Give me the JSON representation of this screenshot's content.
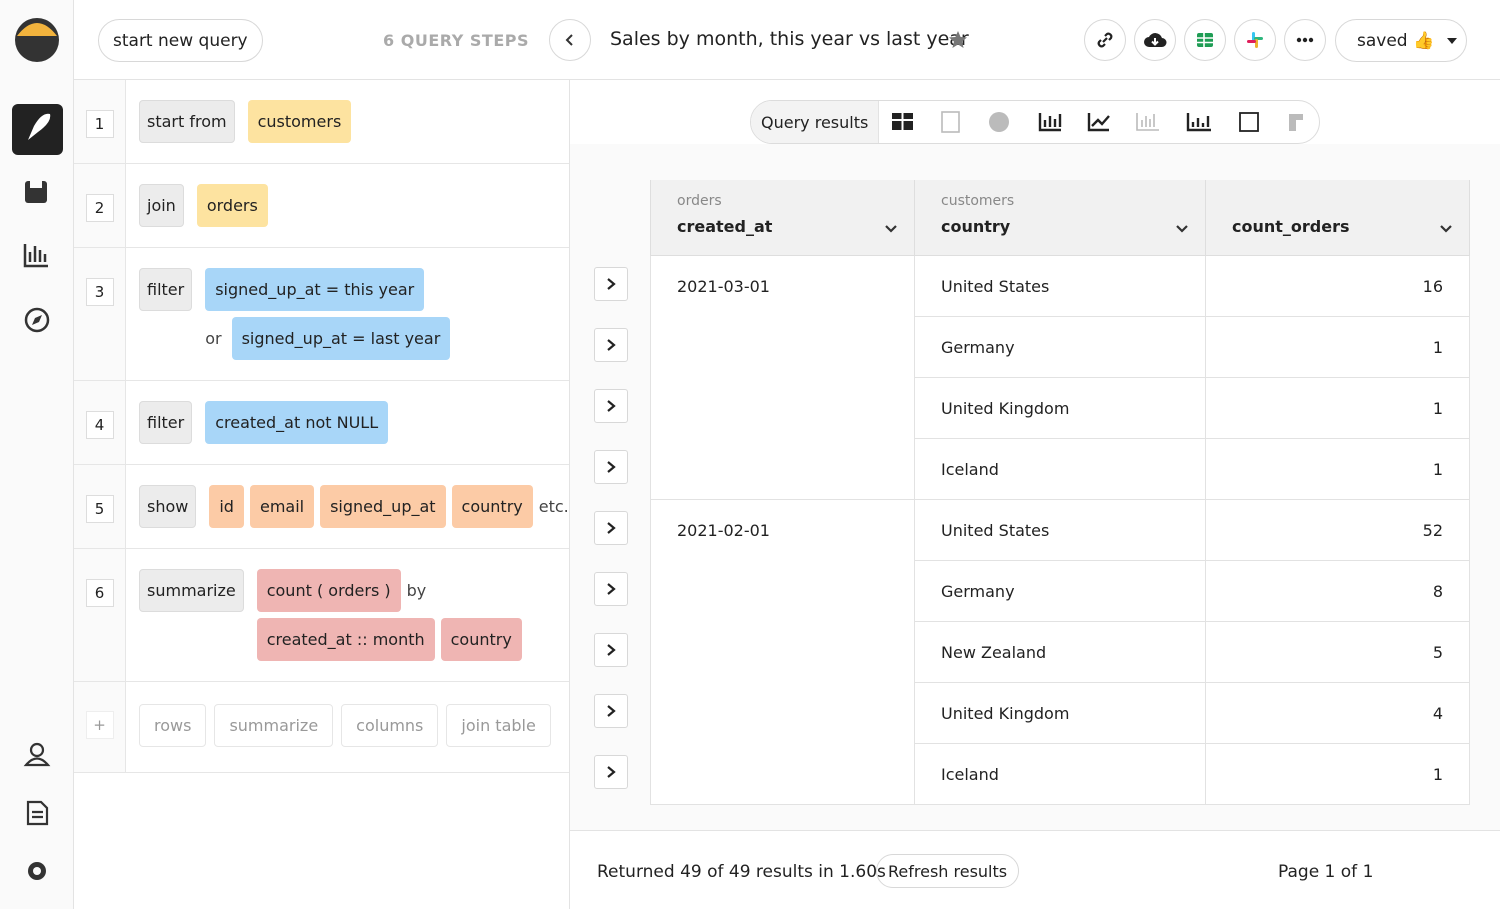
{
  "header": {
    "new_query": "start new query",
    "steps_count": "6 QUERY STEPS",
    "title": "Sales by month, this year vs last year",
    "saved": "saved 👍"
  },
  "steps": [
    {
      "number": 1,
      "verb": "start from",
      "lines": [
        [
          {
            "text": "customers",
            "color": "#fde3a0"
          }
        ]
      ]
    },
    {
      "number": 2,
      "verb": "join",
      "lines": [
        [
          {
            "text": "orders",
            "color": "#fde3a0"
          }
        ]
      ]
    },
    {
      "number": 3,
      "verb": "filter",
      "lines": [
        [
          {
            "text": "signed_up_at = this year",
            "color": "#a8d6f8"
          }
        ],
        [
          {
            "text": "or"
          },
          {
            "text": "signed_up_at = last year",
            "color": "#a8d6f8"
          }
        ]
      ]
    },
    {
      "number": 4,
      "verb": "filter",
      "lines": [
        [
          {
            "text": "created_at not NULL",
            "color": "#a8d6f8"
          }
        ]
      ]
    },
    {
      "number": 5,
      "verb": "show",
      "lines": [
        [
          {
            "text": "id",
            "color": "#fccba6"
          },
          {
            "text": "email",
            "color": "#fccba6"
          },
          {
            "text": "signed_up_at",
            "color": "#fccba6"
          },
          {
            "text": "country",
            "color": "#fccba6"
          },
          {
            "text": "etc."
          }
        ]
      ]
    },
    {
      "number": 6,
      "verb": "summarize",
      "lines": [
        [
          {
            "text": "count ( orders )",
            "color": "#efb5b3"
          },
          {
            "text": "by"
          }
        ],
        [
          {
            "text": "created_at :: month",
            "color": "#efb5b3"
          },
          {
            "text": "country",
            "color": "#efb5b3"
          }
        ]
      ]
    }
  ],
  "add_step": {
    "plus": "+",
    "buttons": [
      "rows",
      "summarize",
      "columns",
      "join table"
    ]
  },
  "results_tab": "Query results",
  "table": {
    "columns": [
      {
        "source": "orders",
        "name": "created_at"
      },
      {
        "source": "customers",
        "name": "country"
      },
      {
        "name": "count_orders"
      }
    ],
    "groups": [
      {
        "date": "2021-03-01",
        "rows": [
          [
            "United States",
            16
          ],
          [
            "Germany",
            1
          ],
          [
            "United Kingdom",
            1
          ],
          [
            "Iceland",
            1
          ]
        ]
      },
      {
        "date": "2021-02-01",
        "rows": [
          [
            "United States",
            52
          ],
          [
            "Germany",
            8
          ],
          [
            "New Zealand",
            5
          ],
          [
            "United Kingdom",
            4
          ],
          [
            "Iceland",
            1
          ]
        ]
      }
    ]
  },
  "footer": {
    "summary": "Returned 49 of 49 results in 1.60s",
    "refresh": "Refresh results",
    "page": "Page 1 of 1"
  }
}
